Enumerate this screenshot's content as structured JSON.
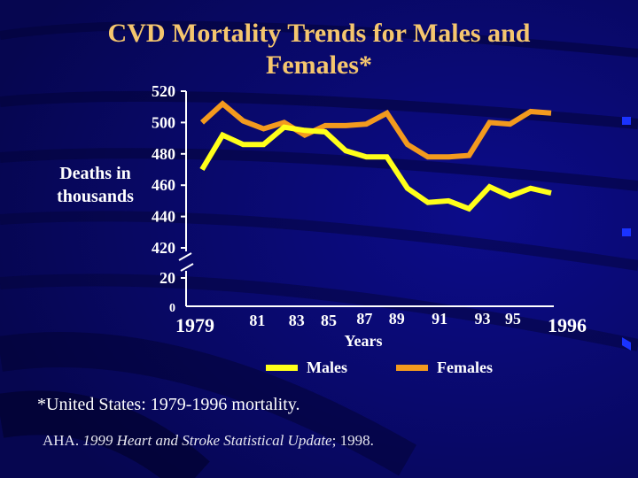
{
  "slide": {
    "title": "CVD Mortality Trends for Males and Females*",
    "footnote": "*United States: 1979-1996 mortality.",
    "source_prefix": "AHA. ",
    "source_italic": "1999 Heart and Stroke Statistical Update",
    "source_suffix": "; 1998."
  },
  "colors": {
    "background": "#08086a",
    "title": "#f5c66e",
    "males": "#ffff1a",
    "females": "#f39a1e",
    "axis": "#ffffff"
  },
  "chart_data": {
    "type": "line",
    "title": "CVD Mortality Trends for Males and Females*",
    "xlabel": "Years",
    "ylabel": "Deaths in thousands",
    "x": [
      1979,
      1980,
      1981,
      1982,
      1983,
      1984,
      1985,
      1986,
      1987,
      1988,
      1989,
      1990,
      1991,
      1992,
      1993,
      1994,
      1995,
      1996
    ],
    "x_tick_labels": [
      "1979",
      "81",
      "83",
      "85",
      "87",
      "89",
      "91",
      "93",
      "95",
      "1996"
    ],
    "x_tick_years": [
      1979,
      1981,
      1983,
      1985,
      1987,
      1989,
      1991,
      1993,
      1995,
      1996
    ],
    "y_tick_labels": [
      "520",
      "500",
      "480",
      "460",
      "440",
      "420",
      "20",
      "0"
    ],
    "ylim": [
      420,
      520
    ],
    "axis_break": "between 420 and 20",
    "grid": false,
    "legend_placement": "bottom",
    "series": [
      {
        "name": "Males",
        "values": [
          470,
          492,
          486,
          486,
          497,
          495,
          494,
          482,
          478,
          478,
          458,
          449,
          450,
          445,
          459,
          453,
          458,
          455
        ]
      },
      {
        "name": "Females",
        "values": [
          500,
          512,
          501,
          496,
          500,
          492,
          498,
          498,
          499,
          506,
          486,
          478,
          478,
          479,
          500,
          499,
          507,
          506
        ]
      }
    ]
  }
}
